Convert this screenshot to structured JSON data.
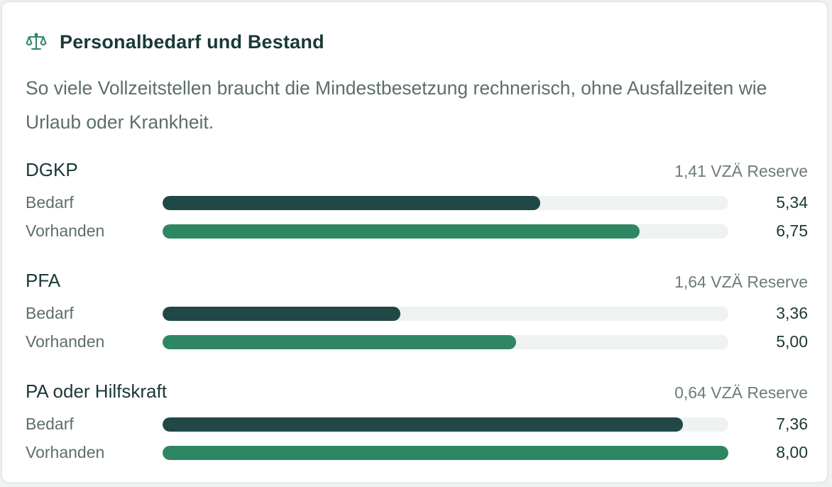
{
  "card": {
    "icon": "scales-icon",
    "title": "Personalbedarf und Bestand",
    "description": "So viele Vollzeitstellen braucht die Mindestbesetzung rechnerisch, ohne Ausfallzeiten wie Urlaub oder Krankheit."
  },
  "scale_max": 8.0,
  "colors": {
    "need": "#1f4846",
    "have": "#2e8762",
    "track": "#eef2f1"
  },
  "groups": [
    {
      "name": "DGKP",
      "reserve": "1,41 VZÄ Reserve",
      "need_label": "Bedarf",
      "need_value": "5,34",
      "need_num": 5.34,
      "have_label": "Vorhanden",
      "have_value": "6,75",
      "have_num": 6.75
    },
    {
      "name": "PFA",
      "reserve": "1,64 VZÄ Reserve",
      "need_label": "Bedarf",
      "need_value": "3,36",
      "need_num": 3.36,
      "have_label": "Vorhanden",
      "have_value": "5,00",
      "have_num": 5.0
    },
    {
      "name": "PA oder Hilfskraft",
      "reserve": "0,64 VZÄ Reserve",
      "need_label": "Bedarf",
      "need_value": "7,36",
      "need_num": 7.36,
      "have_label": "Vorhanden",
      "have_value": "8,00",
      "have_num": 8.0
    }
  ]
}
